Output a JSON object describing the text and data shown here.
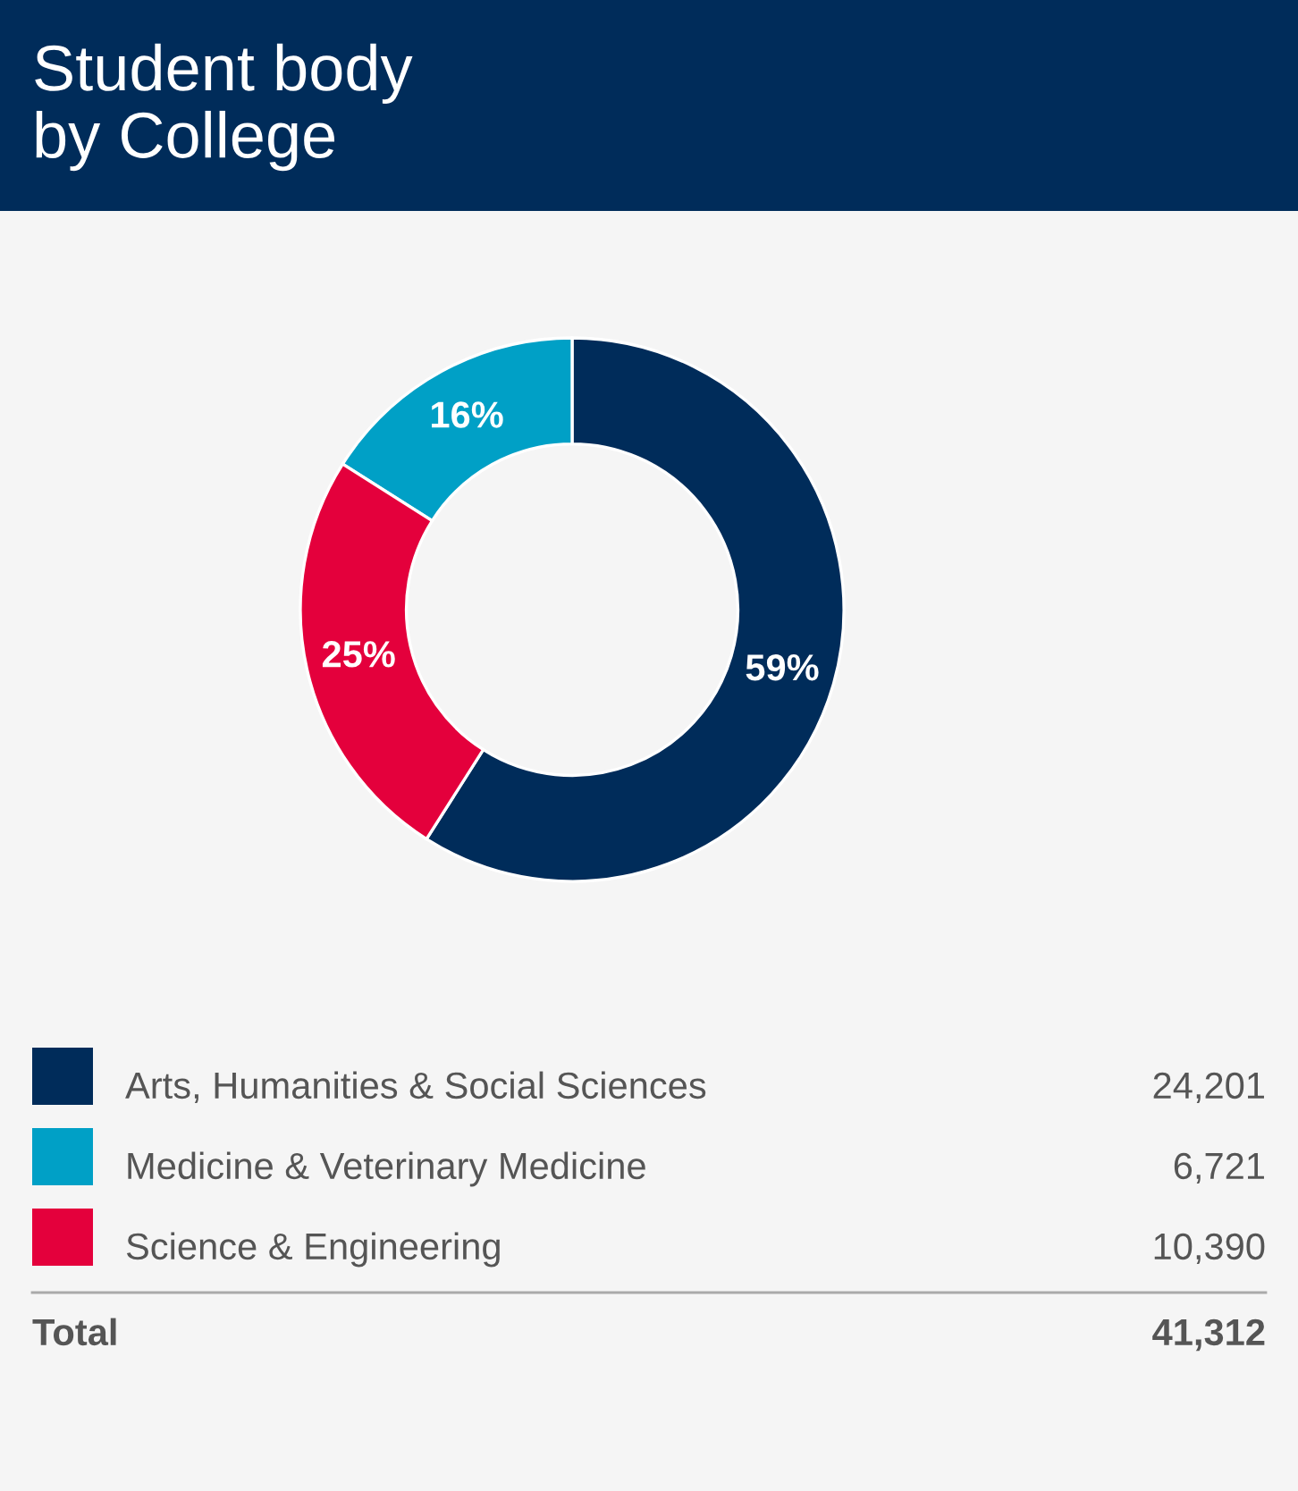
{
  "chart_data": {
    "type": "donut",
    "title": "Student body\nby College",
    "categories": [
      "Arts, Humanities & Social Sciences",
      "Medicine & Veterinary Medicine",
      "Science & Engineering"
    ],
    "values": [
      59,
      16,
      25
    ],
    "colors": [
      "#002c5a",
      "#00a0c6",
      "#e4003c"
    ],
    "value_labels": [
      "59%",
      "16%",
      "25%"
    ],
    "data_labels": true,
    "legend": "bottom",
    "annotations": [
      "24,201",
      "6,721",
      "10,390",
      "Total",
      "41,312"
    ]
  }
}
